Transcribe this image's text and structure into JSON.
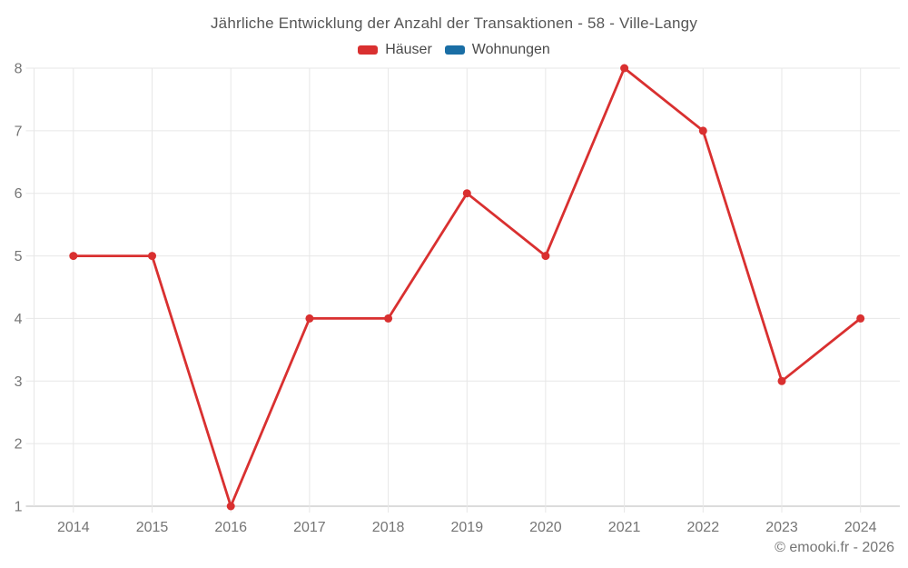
{
  "title": "Jährliche Entwicklung der Anzahl der Transaktionen - 58 - Ville-Langy",
  "legend": {
    "items": [
      {
        "label": "Häuser",
        "color": "#d93030"
      },
      {
        "label": "Wohnungen",
        "color": "#1a6ea5"
      }
    ]
  },
  "footer": {
    "text": "© emooki.fr - 2026"
  },
  "chart_data": {
    "type": "line",
    "title": "Jährliche Entwicklung der Anzahl der Transaktionen - 58 - Ville-Langy",
    "categories": [
      "2014",
      "2015",
      "2016",
      "2017",
      "2018",
      "2019",
      "2020",
      "2021",
      "2022",
      "2023",
      "2024"
    ],
    "series": [
      {
        "name": "Häuser",
        "color": "#d93030",
        "values": [
          5,
          5,
          1,
          4,
          4,
          6,
          5,
          8,
          7,
          3,
          4
        ]
      },
      {
        "name": "Wohnungen",
        "color": "#1a6ea5",
        "values": []
      }
    ],
    "ylim": [
      1,
      8
    ],
    "yticks": [
      1,
      2,
      3,
      4,
      5,
      6,
      7,
      8
    ],
    "xlabel": "",
    "ylabel": "",
    "grid": true,
    "legend_position": "top"
  }
}
